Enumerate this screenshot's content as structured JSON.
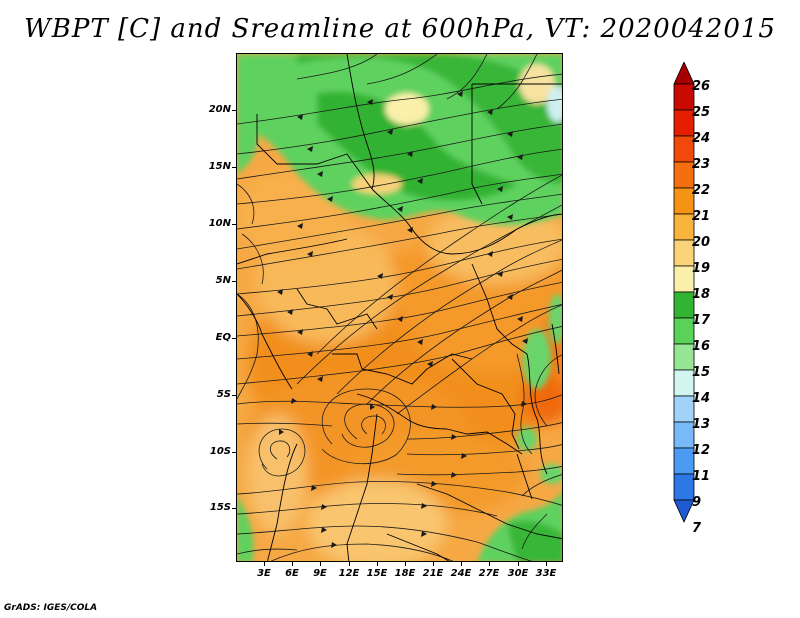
{
  "title": "WBPT [C] and Sreamline at 600hPa, VT: 2020042015",
  "credit": "GrADS: IGES/COLA",
  "map": {
    "lat_labels": [
      "20N",
      "15N",
      "10N",
      "5N",
      "EQ",
      "5S",
      "10S",
      "15S"
    ],
    "lon_labels": [
      "3E",
      "6E",
      "9E",
      "12E",
      "15E",
      "18E",
      "21E",
      "24E",
      "27E",
      "30E",
      "33E"
    ]
  },
  "colorbar": {
    "labels": [
      "26",
      "25",
      "24",
      "23",
      "22",
      "21",
      "20",
      "19",
      "18",
      "17",
      "16",
      "15",
      "14",
      "13",
      "12",
      "11",
      "9",
      "7"
    ],
    "colors": [
      "#a50000",
      "#c80a00",
      "#e51e00",
      "#f04a0a",
      "#f56e0f",
      "#f59414",
      "#f8b43c",
      "#fad278",
      "#faf0aa",
      "#32b432",
      "#5ad25a",
      "#96e696",
      "#d2f5f0",
      "#a0d2fa",
      "#78b9fa",
      "#4b9bf5",
      "#2d78e6",
      "#1e5ad2"
    ]
  }
}
